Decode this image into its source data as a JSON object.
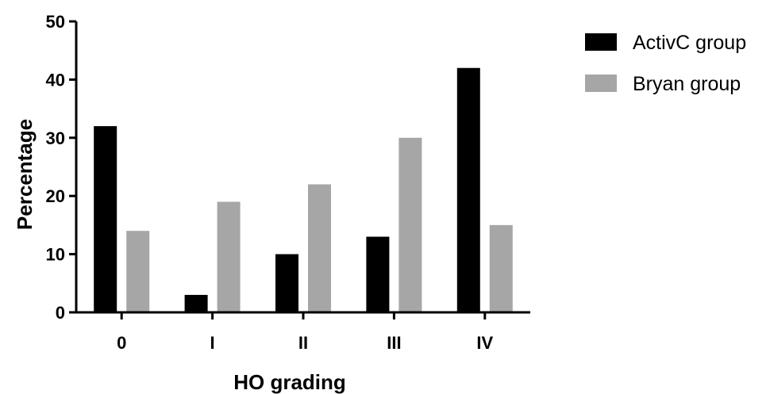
{
  "chart_data": {
    "type": "bar",
    "title": "",
    "xlabel": "HO grading",
    "ylabel": "Percentage",
    "categories": [
      "0",
      "I",
      "II",
      "III",
      "IV"
    ],
    "ylim": [
      0,
      50
    ],
    "yticks": [
      "0",
      "10",
      "20",
      "30",
      "40",
      "50"
    ],
    "grid": false,
    "legend_position": "top-right",
    "series": [
      {
        "name": "ActivC group",
        "color": "#000000",
        "values": [
          32,
          3,
          10,
          13,
          42
        ]
      },
      {
        "name": "Bryan group",
        "color": "#a6a6a6",
        "values": [
          14,
          19,
          22,
          30,
          15
        ]
      }
    ]
  }
}
